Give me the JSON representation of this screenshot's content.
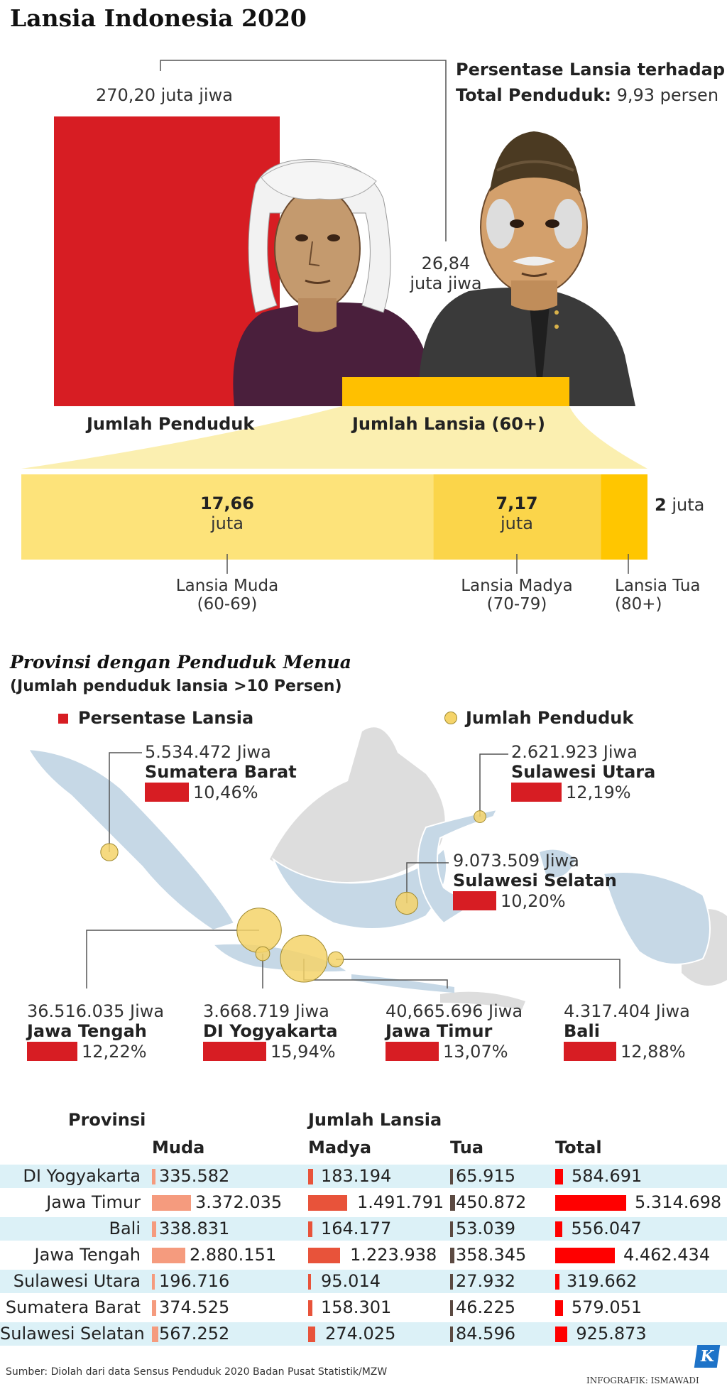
{
  "title": "Lansia Indonesia 2020",
  "top": {
    "total_population_value": "270,20 juta jiwa",
    "elderly_percent_label": "Persentase Lansia terhadap",
    "elderly_percent_label2": "Total Penduduk:",
    "elderly_percent_value": "9,93 persen",
    "elderly_value_line1": "26,84",
    "elderly_value_line2": "juta jiwa",
    "label_total": "Jumlah Penduduk",
    "label_elderly": "Jumlah Lansia (60+)"
  },
  "breakdown": [
    {
      "value": "17,66",
      "unit": "juta",
      "name": "Lansia Muda",
      "range": "(60-69)"
    },
    {
      "value": "7,17",
      "unit": "juta",
      "name": "Lansia Madya",
      "range": "(70-79)"
    },
    {
      "value": "2",
      "unit": "juta",
      "name": "Lansia Tua",
      "range": "(80+)"
    }
  ],
  "map_section": {
    "title": "Provinsi dengan Penduduk Menua",
    "subtitle": "(Jumlah penduduk lansia >10 Persen)",
    "legend_percent": "Persentase Lansia",
    "legend_population": "Jumlah Penduduk",
    "provinces": [
      {
        "name": "Sumatera Barat",
        "population": "5.534.472 Jiwa",
        "percent": "10,46%",
        "pct": 10.46
      },
      {
        "name": "Sulawesi Utara",
        "population": "2.621.923 Jiwa",
        "percent": "12,19%",
        "pct": 12.19
      },
      {
        "name": "Sulawesi Selatan",
        "population": "9.073.509 Jiwa",
        "percent": "10,20%",
        "pct": 10.2
      },
      {
        "name": "Jawa Tengah",
        "population": "36.516.035 Jiwa",
        "percent": "12,22%",
        "pct": 12.22
      },
      {
        "name": "DI Yogyakarta",
        "population": "3.668.719 Jiwa",
        "percent": "15,94%",
        "pct": 15.94
      },
      {
        "name": "Jawa Timur",
        "population": "40,665.696 Jiwa",
        "percent": "13,07%",
        "pct": 13.07
      },
      {
        "name": "Bali",
        "population": "4.317.404 Jiwa",
        "percent": "12,88%",
        "pct": 12.88
      }
    ]
  },
  "table": {
    "header_province": "Provinsi",
    "header_group": "Jumlah Lansia",
    "columns": [
      "Muda",
      "Madya",
      "Tua",
      "Total"
    ],
    "rows": [
      {
        "province": "DI Yogyakarta",
        "muda": "335.582",
        "madya": "183.194",
        "tua": "65.915",
        "total": "584.691"
      },
      {
        "province": "Jawa Timur",
        "muda": "3.372.035",
        "madya": "1.491.791",
        "tua": "450.872",
        "total": "5.314.698"
      },
      {
        "province": "Bali",
        "muda": "338.831",
        "madya": "164.177",
        "tua": "53.039",
        "total": "556.047"
      },
      {
        "province": "Jawa Tengah",
        "muda": "2.880.151",
        "madya": "1.223.938",
        "tua": "358.345",
        "total": "4.462.434"
      },
      {
        "province": "Sulawesi Utara",
        "muda": "196.716",
        "madya": "95.014",
        "tua": "27.932",
        "total": "319.662"
      },
      {
        "province": "Sumatera Barat",
        "muda": "374.525",
        "madya": "158.301",
        "tua": "46.225",
        "total": "579.051"
      },
      {
        "province": "Sulawesi Selatan",
        "muda": "567.252",
        "madya": "274.025",
        "tua": "84.596",
        "total": "925.873"
      }
    ]
  },
  "source": "Sumber: Diolah dari data Sensus Penduduk 2020 Badan Pusat Statistik/MZW",
  "credit": "INFOGRAFIK: ISMAWADI",
  "logo_letter": "K",
  "chart_data": [
    {
      "type": "bar",
      "categories": [
        "Jumlah Penduduk",
        "Jumlah Lansia (60+)"
      ],
      "values": [
        270.2,
        26.84
      ],
      "title": "Lansia Indonesia 2020"
    },
    {
      "type": "bar",
      "categories": [
        "Lansia Muda (60-69)",
        "Lansia Madya (70-79)",
        "Lansia Tua (80+)"
      ],
      "values": [
        17.66,
        7.17,
        2
      ]
    },
    {
      "type": "bar",
      "categories": [
        "Sumatera Barat",
        "Sulawesi Utara",
        "Sulawesi Selatan",
        "Jawa Tengah",
        "DI Yogyakarta",
        "Jawa Timur",
        "Bali"
      ],
      "series": [
        {
          "name": "Persentase Lansia",
          "values": [
            10.46,
            12.19,
            10.2,
            12.22,
            15.94,
            13.07,
            12.88
          ]
        },
        {
          "name": "Jumlah Penduduk",
          "values": [
            5534472,
            2621923,
            9073509,
            36516035,
            3668719,
            40665696,
            4317404
          ]
        }
      ]
    },
    {
      "type": "table",
      "categories": [
        "DI Yogyakarta",
        "Jawa Timur",
        "Bali",
        "Jawa Tengah",
        "Sulawesi Utara",
        "Sumatera Barat",
        "Sulawesi Selatan"
      ],
      "series": [
        {
          "name": "Muda",
          "values": [
            335582,
            3372035,
            338831,
            2880151,
            196716,
            374525,
            567252
          ]
        },
        {
          "name": "Madya",
          "values": [
            183194,
            1491791,
            164177,
            1223938,
            95014,
            158301,
            274025
          ]
        },
        {
          "name": "Tua",
          "values": [
            65915,
            450872,
            53039,
            358345,
            27932,
            46225,
            84596
          ]
        },
        {
          "name": "Total",
          "values": [
            584691,
            5314698,
            556047,
            4462434,
            319662,
            579051,
            925873
          ]
        }
      ]
    }
  ]
}
